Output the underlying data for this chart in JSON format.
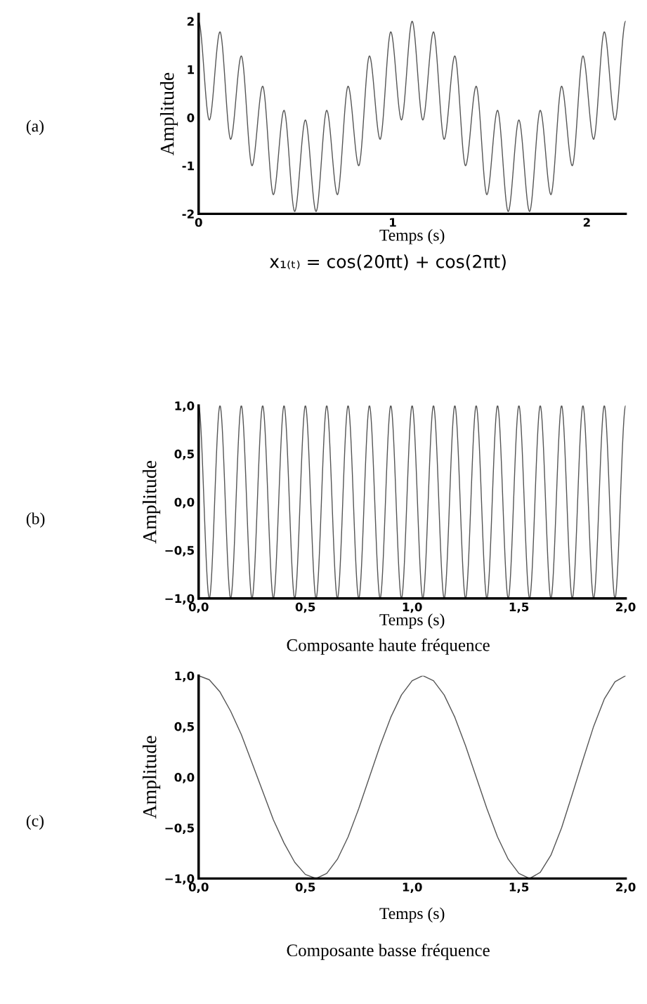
{
  "chart_data": [
    {
      "type": "line",
      "xlabel": "Temps (s)",
      "ylabel": "Amplitude",
      "annotations": [
        "(a)",
        "x₁₍ₜ₎ = cos(20πt) + cos(2πt)"
      ],
      "x": [
        0,
        0.055,
        0.11,
        0.165,
        0.22,
        0.275,
        0.33,
        0.385,
        0.44,
        0.495,
        0.55,
        0.605,
        0.66,
        0.715,
        0.77,
        0.825,
        0.88,
        0.935,
        0.99,
        1.045,
        1.1,
        1.155,
        1.21,
        1.265,
        1.32,
        1.375,
        1.43,
        1.485,
        1.54,
        1.595,
        1.65,
        1.705,
        1.76,
        1.815,
        1.87,
        1.925,
        1.98,
        2.035,
        2.09,
        2.145,
        2.2
      ],
      "series": [
        {
          "color": "#555555",
          "values": [
            2,
            -0.05,
            1.78,
            -0.45,
            1.28,
            -1.0,
            0.65,
            -1.6,
            0.15,
            -1.95,
            -0.05,
            -1.95,
            0.15,
            -1.6,
            0.65,
            -1.0,
            1.28,
            -0.45,
            1.78,
            -0.05,
            2,
            -0.05,
            1.78,
            -0.45,
            1.28,
            -1.0,
            0.65,
            -1.6,
            0.15,
            -1.95,
            -0.05,
            -1.95,
            0.15,
            -1.6,
            0.65,
            -1.0,
            1.28,
            -0.45,
            1.78,
            -0.05,
            2
          ]
        }
      ],
      "xlim": [
        0,
        2.2
      ],
      "ylim": [
        -2,
        2.15
      ],
      "xticks": [
        0,
        1,
        2
      ],
      "yticks": [
        -2,
        -1,
        0,
        1,
        2
      ],
      "grid": false,
      "legend": false
    },
    {
      "type": "line",
      "xlabel": "Temps (s)",
      "ylabel": "Amplitude",
      "annotations": [
        "(b)",
        "Composante haute fréquence"
      ],
      "x": [
        0,
        0.05,
        0.1,
        0.15,
        0.2,
        0.25,
        0.3,
        0.35,
        0.4,
        0.45,
        0.5,
        0.55,
        0.6,
        0.65,
        0.7,
        0.75,
        0.8,
        0.85,
        0.9,
        0.95,
        1.0,
        1.05,
        1.1,
        1.15,
        1.2,
        1.25,
        1.3,
        1.35,
        1.4,
        1.45,
        1.5,
        1.55,
        1.6,
        1.65,
        1.7,
        1.75,
        1.8,
        1.85,
        1.9,
        1.95,
        2.0
      ],
      "series": [
        {
          "color": "#555555",
          "values": [
            1,
            -1,
            1,
            -1,
            1,
            -1,
            1,
            -1,
            1,
            -1,
            1,
            -1,
            1,
            -1,
            1,
            -1,
            1,
            -1,
            1,
            -1,
            1,
            -1,
            1,
            -1,
            1,
            -1,
            1,
            -1,
            1,
            -1,
            1,
            -1,
            1,
            -1,
            1,
            -1,
            1,
            -1,
            1,
            -1,
            1
          ]
        }
      ],
      "xlim": [
        0,
        2.0
      ],
      "ylim": [
        -1,
        1
      ],
      "xticks": [
        {
          "value": 0,
          "label": "0,0"
        },
        {
          "value": 0.5,
          "label": "0,5"
        },
        {
          "value": 1,
          "label": "1,0"
        },
        {
          "value": 1.5,
          "label": "1,5"
        },
        {
          "value": 2,
          "label": "2,0"
        }
      ],
      "yticks": [
        {
          "value": -1,
          "label": "−1,0"
        },
        {
          "value": -0.5,
          "label": "−0,5"
        },
        {
          "value": 0,
          "label": "0,0"
        },
        {
          "value": 0.5,
          "label": "0,5"
        },
        {
          "value": 1,
          "label": "1,0"
        }
      ],
      "grid": false,
      "legend": false
    },
    {
      "type": "line",
      "xlabel": "Temps (s)",
      "ylabel": "Amplitude",
      "annotations": [
        "(c)",
        "Composante basse fréquence"
      ],
      "x": [
        0,
        0.05,
        0.1,
        0.15,
        0.2,
        0.25,
        0.3,
        0.35,
        0.4,
        0.45,
        0.5,
        0.55,
        0.6,
        0.65,
        0.7,
        0.75,
        0.8,
        0.85,
        0.9,
        0.95,
        1.0,
        1.05,
        1.1,
        1.15,
        1.2,
        1.25,
        1.3,
        1.35,
        1.4,
        1.45,
        1.5,
        1.55,
        1.6,
        1.65,
        1.7,
        1.75,
        1.8,
        1.85,
        1.9,
        1.95,
        2.0
      ],
      "series": [
        {
          "color": "#555555",
          "values": [
            1,
            0.96,
            0.84,
            0.65,
            0.42,
            0.14,
            -0.14,
            -0.42,
            -0.65,
            -0.84,
            -0.96,
            -1,
            -0.95,
            -0.81,
            -0.59,
            -0.31,
            0,
            0.31,
            0.59,
            0.81,
            0.95,
            1,
            0.95,
            0.81,
            0.59,
            0.31,
            0,
            -0.31,
            -0.59,
            -0.81,
            -0.95,
            -1,
            -0.94,
            -0.77,
            -0.5,
            -0.17,
            0.17,
            0.5,
            0.77,
            0.94,
            1
          ]
        }
      ],
      "xlim": [
        0,
        2.0
      ],
      "ylim": [
        -1,
        1
      ],
      "xticks": [
        {
          "value": 0,
          "label": "0,0"
        },
        {
          "value": 0.5,
          "label": "0,5"
        },
        {
          "value": 1,
          "label": "1,0"
        },
        {
          "value": 1.5,
          "label": "1,5"
        },
        {
          "value": 2,
          "label": "2,0"
        }
      ],
      "yticks": [
        {
          "value": -1,
          "label": "−1,0"
        },
        {
          "value": -0.5,
          "label": "−0,5"
        },
        {
          "value": 0,
          "label": "0,0"
        },
        {
          "value": 0.5,
          "label": "0,5"
        },
        {
          "value": 1,
          "label": "1,0"
        }
      ],
      "grid": false,
      "legend": false
    }
  ]
}
